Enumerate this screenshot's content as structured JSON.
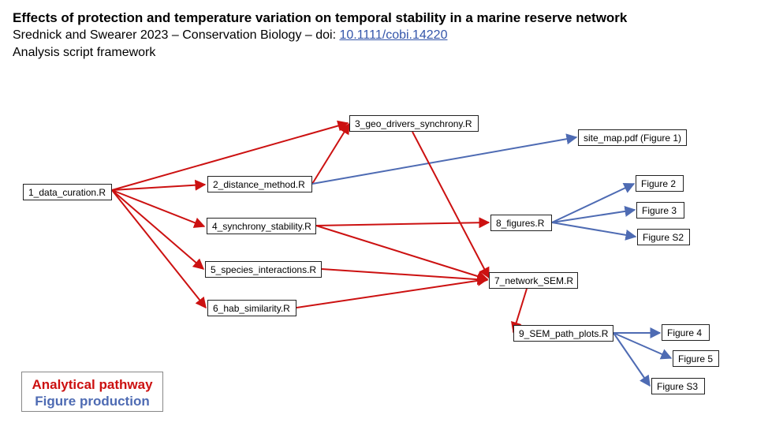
{
  "header": {
    "title": "Effects of protection and temperature variation on temporal stability in a marine reserve network",
    "citation_prefix": "Srednick and Swearer 2023 – Conservation Biology – doi: ",
    "doi_link": "10.1111/cobi.14220",
    "subtitle": "Analysis script framework"
  },
  "colors": {
    "analytical": "#cc1111",
    "figure": "#4e6bb3"
  },
  "nodes": {
    "n1": "1_data_curation.R",
    "n2": "2_distance_method.R",
    "n3": "3_geo_drivers_synchrony.R",
    "n4": "4_synchrony_stability.R",
    "n5": "5_species_interactions.R",
    "n6": "6_hab_similarity.R",
    "n7": "7_network_SEM.R",
    "n8": "8_figures.R",
    "n9": "9_SEM_path_plots.R",
    "site_map": "site_map.pdf (Figure 1)",
    "fig2": "Figure 2",
    "fig3": "Figure 3",
    "figS2": "Figure S2",
    "fig4": "Figure 4",
    "fig5": "Figure 5",
    "figS3": "Figure S3"
  },
  "edges": [
    {
      "from": "n1",
      "to": "n2",
      "type": "analytical"
    },
    {
      "from": "n1",
      "to": "n3",
      "type": "analytical"
    },
    {
      "from": "n1",
      "to": "n4",
      "type": "analytical"
    },
    {
      "from": "n1",
      "to": "n5",
      "type": "analytical"
    },
    {
      "from": "n1",
      "to": "n6",
      "type": "analytical"
    },
    {
      "from": "n2",
      "to": "n3",
      "type": "analytical"
    },
    {
      "from": "n2",
      "to": "site_map",
      "type": "figure"
    },
    {
      "from": "n3",
      "to": "n7",
      "type": "analytical"
    },
    {
      "from": "n4",
      "to": "n8",
      "type": "analytical"
    },
    {
      "from": "n4",
      "to": "n7",
      "type": "analytical"
    },
    {
      "from": "n5",
      "to": "n7",
      "type": "analytical"
    },
    {
      "from": "n6",
      "to": "n7",
      "type": "analytical"
    },
    {
      "from": "n7",
      "to": "n9",
      "type": "analytical"
    },
    {
      "from": "n8",
      "to": "fig2",
      "type": "figure"
    },
    {
      "from": "n8",
      "to": "fig3",
      "type": "figure"
    },
    {
      "from": "n8",
      "to": "figS2",
      "type": "figure"
    },
    {
      "from": "n9",
      "to": "fig4",
      "type": "figure"
    },
    {
      "from": "n9",
      "to": "fig5",
      "type": "figure"
    },
    {
      "from": "n9",
      "to": "figS3",
      "type": "figure"
    }
  ],
  "legend": {
    "analytical": "Analytical pathway",
    "figure": "Figure production"
  }
}
